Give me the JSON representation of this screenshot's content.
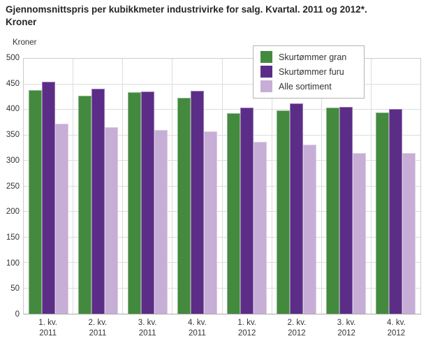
{
  "title": {
    "line1": "Gjennomsnittspris per kubikkmeter industrivirke for salg. Kvartal. 2011 og 2012*.",
    "line2": "Kroner"
  },
  "chart_data": {
    "type": "bar",
    "unit_label": "Kroner",
    "ylabel": "Kroner",
    "xlabel": "",
    "ylim": [
      0,
      500
    ],
    "ytick_step": 50,
    "grid": true,
    "legend_position": "top-right",
    "categories": [
      {
        "line1": "1. kv.",
        "line2": "2011"
      },
      {
        "line1": "2. kv.",
        "line2": "2011"
      },
      {
        "line1": "3. kv.",
        "line2": "2011"
      },
      {
        "line1": "4. kv.",
        "line2": "2011"
      },
      {
        "line1": "1. kv.",
        "line2": "2012"
      },
      {
        "line1": "2. kv.",
        "line2": "2012"
      },
      {
        "line1": "3. kv.",
        "line2": "2012"
      },
      {
        "line1": "4. kv.",
        "line2": "2012"
      }
    ],
    "series": [
      {
        "name": "Skurtømmer gran",
        "color": "#438a3f",
        "values": [
          438,
          427,
          434,
          423,
          393,
          399,
          404,
          394
        ]
      },
      {
        "name": "Skurtømmer furu",
        "color": "#5c2d87",
        "values": [
          455,
          441,
          436,
          437,
          404,
          413,
          406,
          401
        ]
      },
      {
        "name": "Alle sortiment",
        "color": "#c7aed6",
        "values": [
          373,
          366,
          360,
          358,
          337,
          332,
          315,
          315
        ]
      }
    ]
  },
  "colors": {
    "grid": "#dcdcdc",
    "frame": "#cccccc",
    "axis": "#a8a8a8",
    "text": "#333333",
    "title_text": "#262626",
    "legend_border": "#b4b4b4"
  }
}
